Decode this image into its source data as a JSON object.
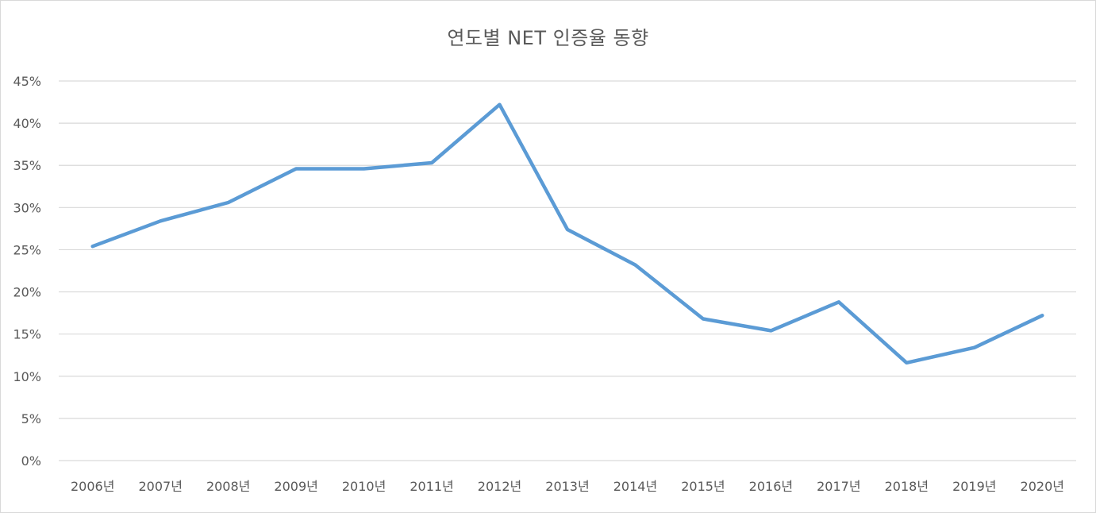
{
  "chart_data": {
    "type": "line",
    "title": "연도별 NET 인증율 동향",
    "xlabel": "",
    "ylabel": "",
    "categories": [
      "2006년",
      "2007년",
      "2008년",
      "2009년",
      "2010년",
      "2011년",
      "2012년",
      "2013년",
      "2014년",
      "2015년",
      "2016년",
      "2017년",
      "2018년",
      "2019년",
      "2020년"
    ],
    "series": [
      {
        "values": [
          25.4,
          28.4,
          30.6,
          34.6,
          34.6,
          35.3,
          42.2,
          27.4,
          23.2,
          16.8,
          15.4,
          18.8,
          11.6,
          13.4,
          17.2
        ],
        "color": "#5b9bd5"
      }
    ],
    "ylim": [
      0,
      45
    ],
    "yticks": [
      0,
      5,
      10,
      15,
      20,
      25,
      30,
      35,
      40,
      45
    ],
    "ytick_labels": [
      "0%",
      "5%",
      "10%",
      "15%",
      "20%",
      "25%",
      "30%",
      "35%",
      "40%",
      "45%"
    ],
    "grid": true,
    "legend": "none"
  }
}
